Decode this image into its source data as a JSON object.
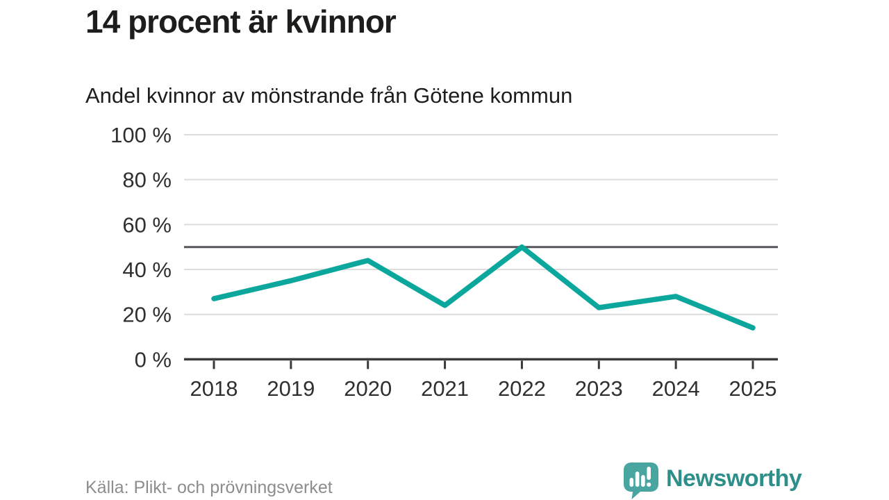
{
  "header": {
    "title": "14 procent är kvinnor",
    "subtitle": "Andel kvinnor av mönstrande från Götene kommun"
  },
  "chart_data": {
    "type": "line",
    "title": "Andel kvinnor av mönstrande från Götene kommun",
    "categories": [
      "2018",
      "2019",
      "2020",
      "2021",
      "2022",
      "2023",
      "2024",
      "2025"
    ],
    "values": [
      27,
      35,
      44,
      24,
      50,
      23,
      28,
      14
    ],
    "series_name": "Andel kvinnor",
    "unit": "%",
    "xlabel": "",
    "ylabel": "",
    "ylim": [
      0,
      100
    ],
    "yticks": [
      0,
      20,
      40,
      60,
      80,
      100
    ],
    "ytick_suffix": " %",
    "reference_line_y": 50,
    "grid": true,
    "legend_position": "none",
    "line_color": "#0ba79c"
  },
  "footer": {
    "source": "Källa: Plikt- och prövningsverket",
    "brand_name": "Newsworthy"
  },
  "colors": {
    "title_text": "#1d1d1b",
    "axis_text": "#2f2f2f",
    "gridline": "#dcdcdc",
    "axis_line": "#3a3a3a",
    "reference_line": "#55565a",
    "data_line": "#0ba79c",
    "source_text": "#8d8d8d",
    "brand_text": "#2e8f8a",
    "brand_icon": "#49a5a0"
  }
}
